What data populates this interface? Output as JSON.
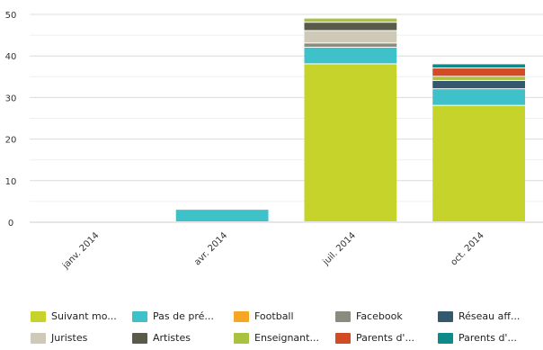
{
  "chart_data": {
    "type": "bar",
    "stacked": true,
    "categories": [
      "janv. 2014",
      "avr. 2014",
      "juil. 2014",
      "oct. 2014"
    ],
    "ylim": [
      0,
      50
    ],
    "yticks": [
      0,
      10,
      20,
      30,
      40,
      50
    ],
    "grid": true,
    "legend_position": "bottom",
    "series": [
      {
        "name": "Suivant mo...",
        "color": "#c5d32a",
        "values": [
          0,
          0,
          38,
          28
        ]
      },
      {
        "name": "Pas de pré...",
        "color": "#3ec1c9",
        "values": [
          0,
          3,
          4,
          4
        ]
      },
      {
        "name": "Football",
        "color": "#f5a623",
        "values": [
          0,
          0,
          0,
          0
        ]
      },
      {
        "name": "Facebook",
        "color": "#8a8d7d",
        "values": [
          0,
          0,
          1,
          0
        ]
      },
      {
        "name": "Réseau aff...",
        "color": "#34586d",
        "values": [
          0,
          0,
          0,
          2
        ]
      },
      {
        "name": "Juristes",
        "color": "#cfcab8",
        "values": [
          0,
          0,
          3,
          0
        ]
      },
      {
        "name": "Artistes",
        "color": "#5a5a4a",
        "values": [
          0,
          0,
          2,
          0
        ]
      },
      {
        "name": "Enseignant...",
        "color": "#a9c23f",
        "values": [
          0,
          0,
          1,
          1
        ]
      },
      {
        "name": "Parents d'...",
        "color": "#d24b24",
        "values": [
          0,
          0,
          0,
          2
        ]
      },
      {
        "name": "Parents d'...",
        "color": "#0f8a8a",
        "values": [
          0,
          0,
          0,
          1
        ]
      }
    ]
  }
}
